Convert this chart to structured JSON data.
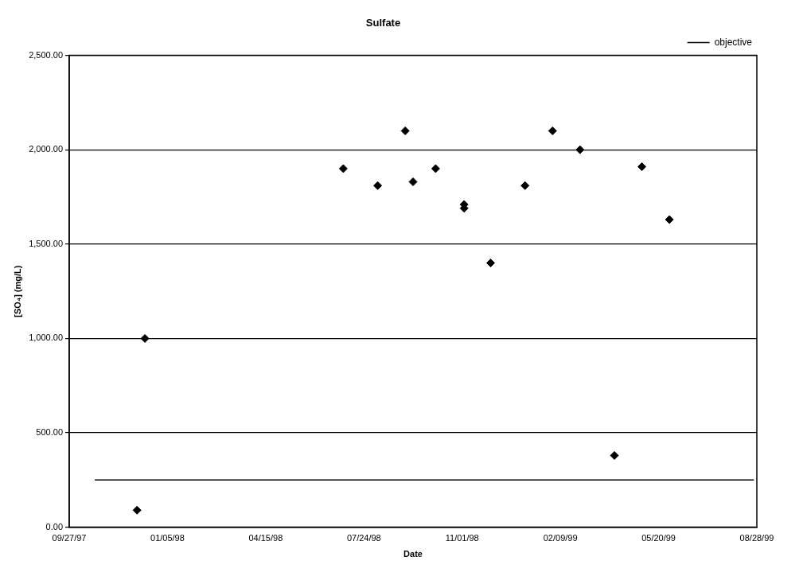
{
  "chart_data": {
    "type": "scatter",
    "title": "Sulfate",
    "xlabel": "Date",
    "ylabel": "[SO₄] (mg/L)",
    "xlim": [
      "1997-09-27",
      "1999-08-28"
    ],
    "xticks": [
      {
        "value": "1997-09-27",
        "label": "09/27/97"
      },
      {
        "value": "1998-01-05",
        "label": "01/05/98"
      },
      {
        "value": "1998-04-15",
        "label": "04/15/98"
      },
      {
        "value": "1998-07-24",
        "label": "07/24/98"
      },
      {
        "value": "1998-11-01",
        "label": "11/01/98"
      },
      {
        "value": "1999-02-09",
        "label": "02/09/99"
      },
      {
        "value": "1999-05-20",
        "label": "05/20/99"
      },
      {
        "value": "1999-08-28",
        "label": "08/28/99"
      }
    ],
    "ylim": [
      0,
      2500
    ],
    "yticks": [
      {
        "value": 0,
        "label": "0.00"
      },
      {
        "value": 500,
        "label": "500.00"
      },
      {
        "value": 1000,
        "label": "1,000.00"
      },
      {
        "value": 1500,
        "label": "1,500.00"
      },
      {
        "value": 2000,
        "label": "2,000.00"
      },
      {
        "value": 2500,
        "label": "2,500.00"
      }
    ],
    "grid": "y",
    "legend": "top right",
    "marker": "diamond",
    "series": [
      {
        "color": "#000000",
        "x": [
          "1997-12-05",
          "1997-12-13",
          "1998-07-03",
          "1998-08-07",
          "1998-09-04",
          "1998-09-12",
          "1998-10-05",
          "1998-11-03",
          "1998-11-03",
          "1998-11-30",
          "1999-01-04",
          "1999-02-01",
          "1999-03-01",
          "1999-04-05",
          "1999-05-03",
          "1999-05-31"
        ],
        "values": [
          90,
          1000,
          1900,
          1810,
          2100,
          1830,
          1900,
          1710,
          1690,
          1400,
          1810,
          2100,
          2000,
          380,
          1910,
          1630
        ]
      },
      {
        "type": "line",
        "name": "objective",
        "color": "#000000",
        "marker": "none",
        "line_style": "solid",
        "x": [
          "1997-10-23",
          "1999-08-25"
        ],
        "values": [
          250,
          250
        ]
      }
    ]
  }
}
